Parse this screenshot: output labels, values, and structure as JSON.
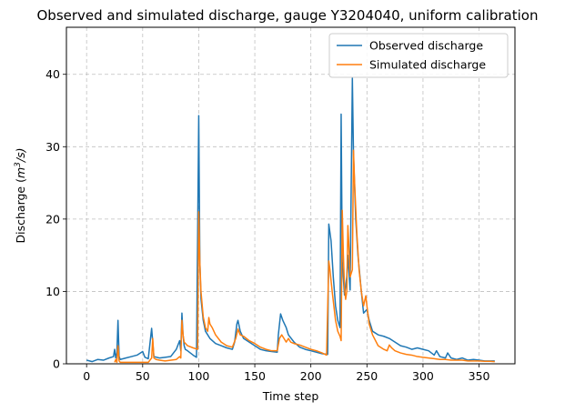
{
  "chart_data": {
    "type": "line",
    "title": "Observed and simulated discharge, gauge Y3204040, uniform calibration",
    "xlabel": "Time step",
    "ylabel_main": "Discharge (",
    "ylabel_unit_base": "m",
    "ylabel_unit_sup": "3",
    "ylabel_unit_tail": "/s)",
    "ylabel_close": ")",
    "xlim": [
      -18,
      382
    ],
    "ylim": [
      0,
      46.5
    ],
    "xticks": [
      0,
      50,
      100,
      150,
      200,
      250,
      300,
      350
    ],
    "yticks": [
      0,
      10,
      20,
      30,
      40
    ],
    "grid": true,
    "legend_position": "top-right",
    "series": [
      {
        "name": "Observed discharge",
        "color": "#1f77b4",
        "points": [
          [
            0,
            0.5
          ],
          [
            5,
            0.3
          ],
          [
            10,
            0.6
          ],
          [
            15,
            0.5
          ],
          [
            20,
            0.8
          ],
          [
            24,
            1.0
          ],
          [
            25,
            2.0
          ],
          [
            26,
            0.8
          ],
          [
            27,
            1.5
          ],
          [
            28,
            6.0
          ],
          [
            29,
            1.0
          ],
          [
            30,
            0.6
          ],
          [
            35,
            0.8
          ],
          [
            40,
            1.0
          ],
          [
            45,
            1.2
          ],
          [
            50,
            1.7
          ],
          [
            52,
            0.9
          ],
          [
            55,
            0.7
          ],
          [
            58,
            4.9
          ],
          [
            60,
            1.0
          ],
          [
            65,
            0.8
          ],
          [
            70,
            0.9
          ],
          [
            75,
            1.0
          ],
          [
            80,
            2.0
          ],
          [
            83,
            3.2
          ],
          [
            84,
            1.8
          ],
          [
            85,
            7.0
          ],
          [
            86,
            4.0
          ],
          [
            87,
            2.5
          ],
          [
            88,
            2.0
          ],
          [
            90,
            1.8
          ],
          [
            95,
            1.2
          ],
          [
            98,
            0.9
          ],
          [
            100,
            34.3
          ],
          [
            101,
            14.0
          ],
          [
            102,
            9.0
          ],
          [
            104,
            6.0
          ],
          [
            106,
            4.5
          ],
          [
            110,
            3.5
          ],
          [
            115,
            2.8
          ],
          [
            120,
            2.5
          ],
          [
            125,
            2.2
          ],
          [
            130,
            2.0
          ],
          [
            132,
            3.0
          ],
          [
            134,
            5.5
          ],
          [
            135,
            6.0
          ],
          [
            137,
            4.5
          ],
          [
            140,
            3.5
          ],
          [
            145,
            3.0
          ],
          [
            150,
            2.5
          ],
          [
            155,
            2.0
          ],
          [
            160,
            1.8
          ],
          [
            165,
            1.7
          ],
          [
            170,
            1.6
          ],
          [
            171,
            4.0
          ],
          [
            173,
            6.9
          ],
          [
            175,
            6.0
          ],
          [
            178,
            5.0
          ],
          [
            180,
            4.0
          ],
          [
            185,
            3.0
          ],
          [
            190,
            2.3
          ],
          [
            195,
            2.0
          ],
          [
            200,
            1.8
          ],
          [
            205,
            1.6
          ],
          [
            210,
            1.4
          ],
          [
            215,
            1.3
          ],
          [
            216,
            19.3
          ],
          [
            218,
            17.0
          ],
          [
            220,
            12.0
          ],
          [
            222,
            8.0
          ],
          [
            224,
            6.0
          ],
          [
            226,
            5.0
          ],
          [
            227,
            34.5
          ],
          [
            228,
            14.0
          ],
          [
            230,
            9.5
          ],
          [
            232,
            12.0
          ],
          [
            233,
            15.0
          ],
          [
            235,
            10.2
          ],
          [
            237,
            39.5
          ],
          [
            238,
            29.0
          ],
          [
            240,
            20.0
          ],
          [
            242,
            15.0
          ],
          [
            245,
            10.0
          ],
          [
            247,
            7.0
          ],
          [
            250,
            7.5
          ],
          [
            252,
            6.0
          ],
          [
            255,
            4.5
          ],
          [
            260,
            4.0
          ],
          [
            265,
            3.8
          ],
          [
            270,
            3.5
          ],
          [
            275,
            3.0
          ],
          [
            280,
            2.5
          ],
          [
            285,
            2.3
          ],
          [
            290,
            2.0
          ],
          [
            295,
            2.2
          ],
          [
            300,
            2.0
          ],
          [
            305,
            1.8
          ],
          [
            310,
            1.2
          ],
          [
            312,
            1.8
          ],
          [
            315,
            1.0
          ],
          [
            320,
            0.8
          ],
          [
            322,
            1.5
          ],
          [
            325,
            0.8
          ],
          [
            330,
            0.6
          ],
          [
            335,
            0.8
          ],
          [
            340,
            0.5
          ],
          [
            345,
            0.6
          ],
          [
            350,
            0.5
          ],
          [
            355,
            0.4
          ],
          [
            360,
            0.4
          ],
          [
            364,
            0.4
          ]
        ]
      },
      {
        "name": "Simulated discharge",
        "color": "#ff7f0e",
        "points": [
          [
            25,
            0.2
          ],
          [
            26,
            0.6
          ],
          [
            27,
            0.2
          ],
          [
            28,
            2.5
          ],
          [
            29,
            0.4
          ],
          [
            30,
            0.2
          ],
          [
            35,
            0.2
          ],
          [
            40,
            0.2
          ],
          [
            50,
            0.2
          ],
          [
            55,
            0.2
          ],
          [
            58,
            0.8
          ],
          [
            59,
            3.5
          ],
          [
            60,
            0.8
          ],
          [
            62,
            0.6
          ],
          [
            65,
            0.5
          ],
          [
            70,
            0.4
          ],
          [
            80,
            0.6
          ],
          [
            83,
            1.0
          ],
          [
            84,
            0.8
          ],
          [
            85,
            6.0
          ],
          [
            86,
            4.0
          ],
          [
            87,
            3.0
          ],
          [
            90,
            2.5
          ],
          [
            95,
            2.2
          ],
          [
            99,
            2.0
          ],
          [
            100,
            21.0
          ],
          [
            101,
            14.0
          ],
          [
            102,
            10.0
          ],
          [
            104,
            6.5
          ],
          [
            106,
            5.0
          ],
          [
            108,
            4.5
          ],
          [
            109,
            6.4
          ],
          [
            110,
            5.5
          ],
          [
            112,
            5.0
          ],
          [
            115,
            4.0
          ],
          [
            120,
            3.0
          ],
          [
            125,
            2.5
          ],
          [
            130,
            2.3
          ],
          [
            133,
            3.5
          ],
          [
            135,
            4.8
          ],
          [
            137,
            4.0
          ],
          [
            140,
            3.8
          ],
          [
            145,
            3.2
          ],
          [
            150,
            2.8
          ],
          [
            155,
            2.3
          ],
          [
            160,
            2.0
          ],
          [
            165,
            1.8
          ],
          [
            170,
            1.8
          ],
          [
            172,
            3.5
          ],
          [
            174,
            4.0
          ],
          [
            176,
            3.5
          ],
          [
            178,
            3.0
          ],
          [
            180,
            3.5
          ],
          [
            182,
            3.0
          ],
          [
            185,
            2.8
          ],
          [
            190,
            2.6
          ],
          [
            195,
            2.3
          ],
          [
            200,
            2.0
          ],
          [
            205,
            1.8
          ],
          [
            210,
            1.5
          ],
          [
            214,
            1.2
          ],
          [
            216,
            14.2
          ],
          [
            217,
            13.0
          ],
          [
            219,
            10.0
          ],
          [
            222,
            6.0
          ],
          [
            224,
            4.5
          ],
          [
            226,
            3.8
          ],
          [
            227,
            3.2
          ],
          [
            228,
            21.2
          ],
          [
            229,
            15.0
          ],
          [
            230,
            10.5
          ],
          [
            231,
            8.9
          ],
          [
            232,
            10.0
          ],
          [
            233,
            19.1
          ],
          [
            234,
            16.0
          ],
          [
            235,
            12.0
          ],
          [
            237,
            13.0
          ],
          [
            238,
            29.5
          ],
          [
            239,
            25.0
          ],
          [
            241,
            18.0
          ],
          [
            243,
            13.0
          ],
          [
            245,
            10.0
          ],
          [
            247,
            8.0
          ],
          [
            249,
            9.4
          ],
          [
            250,
            8.0
          ],
          [
            252,
            5.5
          ],
          [
            255,
            4.0
          ],
          [
            260,
            2.5
          ],
          [
            265,
            2.0
          ],
          [
            268,
            1.8
          ],
          [
            270,
            2.6
          ],
          [
            272,
            2.2
          ],
          [
            275,
            1.8
          ],
          [
            280,
            1.5
          ],
          [
            285,
            1.3
          ],
          [
            290,
            1.2
          ],
          [
            295,
            1.0
          ],
          [
            300,
            0.9
          ],
          [
            305,
            0.8
          ],
          [
            310,
            0.7
          ],
          [
            315,
            0.6
          ],
          [
            320,
            0.6
          ],
          [
            325,
            0.5
          ],
          [
            330,
            0.5
          ],
          [
            335,
            0.5
          ],
          [
            340,
            0.4
          ],
          [
            345,
            0.4
          ],
          [
            350,
            0.4
          ],
          [
            355,
            0.35
          ],
          [
            360,
            0.35
          ],
          [
            364,
            0.3
          ]
        ]
      }
    ]
  }
}
